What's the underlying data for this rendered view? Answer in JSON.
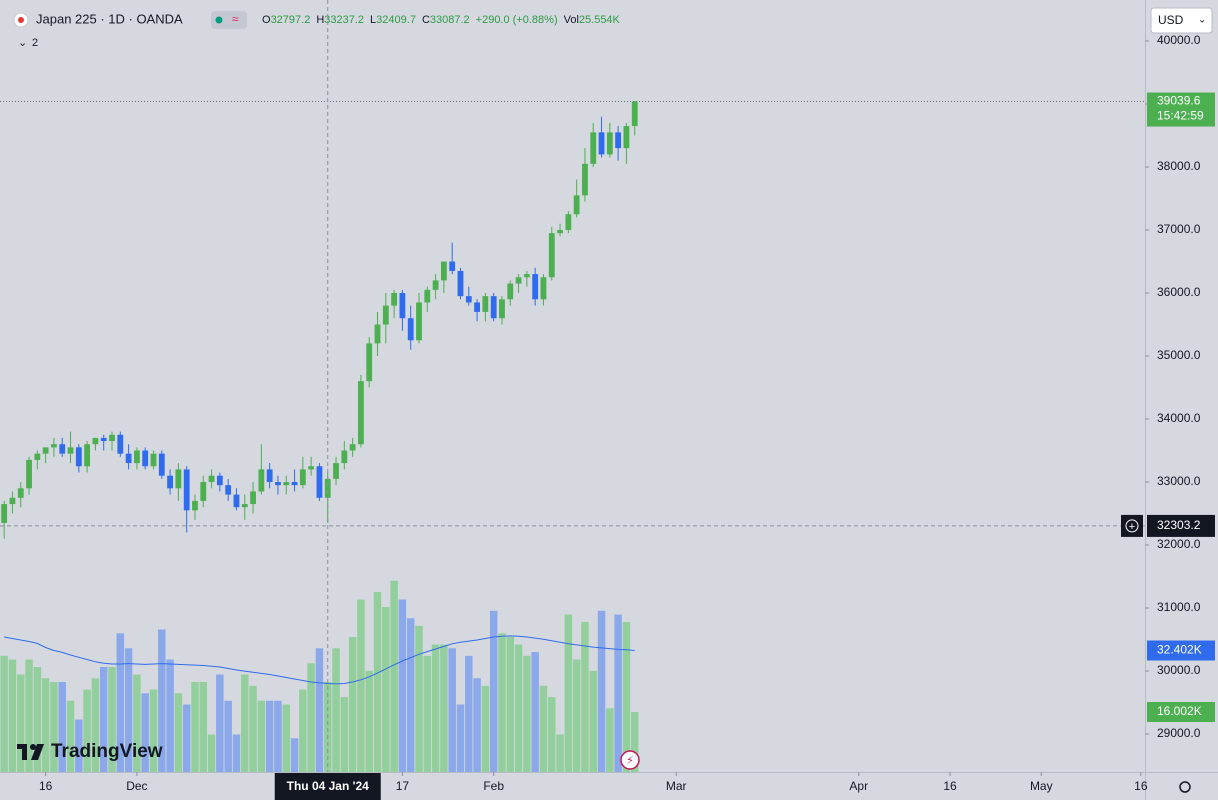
{
  "chart_data": {
    "type": "candlestick",
    "symbol": "Japan 225 · 1D · OANDA",
    "indicator_count": "2",
    "currency": "USD",
    "brand": "TradingView",
    "readout": [
      {
        "label": "O",
        "value": "32797.2"
      },
      {
        "label": "H",
        "value": "33237.2"
      },
      {
        "label": "L",
        "value": "32409.7"
      },
      {
        "label": "C",
        "value": "33087.2"
      },
      {
        "label": "",
        "value": "+290.0 (+0.88%)"
      },
      {
        "label": "Vol",
        "value": "25.554K"
      }
    ],
    "up_color": "#4caf50",
    "down_color": "#2f6bec",
    "volume_up_color": "#93cf9c",
    "volume_down_color": "#8aa8ea",
    "volume_ma_color": "#2f6bec",
    "open": [
      32350,
      32650,
      32750,
      32900,
      33350,
      33450,
      33550,
      33600,
      33450,
      33550,
      33250,
      33600,
      33700,
      33650,
      33750,
      33450,
      33300,
      33500,
      33250,
      33450,
      33100,
      32900,
      33200,
      32550,
      32700,
      33000,
      33100,
      32950,
      32800,
      32600,
      32650,
      32850,
      33200,
      33000,
      32950,
      33000,
      32950,
      33200,
      33250,
      32750,
      33050,
      33300,
      33500,
      33600,
      34600,
      35200,
      35500,
      35800,
      36000,
      35600,
      35250,
      35850,
      36050,
      36200,
      36500,
      36350,
      35950,
      35850,
      35700,
      35950,
      35600,
      35900,
      36150,
      36250,
      36300,
      35900,
      36250,
      36950,
      37000,
      37250,
      37550,
      38050,
      38550,
      38200,
      38550,
      38300,
      38650
    ],
    "high": [
      32700,
      32850,
      33000,
      33400,
      33500,
      33550,
      33700,
      33700,
      33800,
      33600,
      33650,
      33700,
      33750,
      33800,
      33800,
      33600,
      33550,
      33550,
      33500,
      33500,
      33200,
      33300,
      33250,
      32800,
      33100,
      33200,
      33150,
      33050,
      32900,
      32800,
      33000,
      33600,
      33300,
      33100,
      33100,
      33200,
      33400,
      33400,
      33300,
      33150,
      33400,
      33650,
      33700,
      34700,
      35300,
      35700,
      36000,
      36050,
      36050,
      35800,
      36000,
      36100,
      36300,
      36500,
      36800,
      36400,
      36100,
      35900,
      36000,
      36000,
      35950,
      36200,
      36300,
      36350,
      36400,
      36300,
      37050,
      37100,
      37300,
      37800,
      38300,
      38700,
      38800,
      38700,
      38650,
      38700,
      39050
    ],
    "low": [
      32100,
      32500,
      32600,
      32800,
      33200,
      33300,
      33400,
      33400,
      33300,
      33150,
      33150,
      33500,
      33500,
      33500,
      33400,
      33200,
      33200,
      33200,
      33200,
      33050,
      32800,
      32700,
      32200,
      32400,
      32600,
      32900,
      32850,
      32700,
      32550,
      32400,
      32500,
      32800,
      32900,
      32800,
      32800,
      32850,
      32900,
      33100,
      32700,
      32350,
      32950,
      33200,
      33400,
      33550,
      34500,
      35000,
      35200,
      35600,
      35400,
      35100,
      35200,
      35700,
      35900,
      36000,
      36300,
      35900,
      35800,
      35550,
      35550,
      35550,
      35500,
      35800,
      36000,
      36100,
      35800,
      35800,
      36200,
      36900,
      36950,
      37200,
      37450,
      38000,
      38150,
      38150,
      38100,
      38050,
      38500
    ],
    "close": [
      32650,
      32750,
      32900,
      33350,
      33450,
      33550,
      33600,
      33450,
      33550,
      33250,
      33600,
      33700,
      33650,
      33750,
      33450,
      33300,
      33500,
      33250,
      33450,
      33100,
      32900,
      33200,
      32550,
      32700,
      33000,
      33100,
      32950,
      32800,
      32600,
      32650,
      32850,
      33200,
      33000,
      32950,
      33000,
      32950,
      33200,
      33250,
      32750,
      33050,
      33300,
      33500,
      33600,
      34600,
      35200,
      35500,
      35800,
      36000,
      35600,
      35250,
      35850,
      36050,
      36200,
      36500,
      36350,
      35950,
      35850,
      35700,
      35950,
      35600,
      35900,
      36150,
      36250,
      36300,
      35900,
      36250,
      36950,
      37000,
      37250,
      37550,
      38050,
      38550,
      38200,
      38550,
      38300,
      38650,
      39039.6
    ],
    "volume": [
      31,
      30,
      26,
      30,
      28,
      25,
      24,
      24,
      19,
      14,
      22,
      25,
      28,
      28,
      37,
      33,
      26,
      21,
      22,
      38,
      30,
      21,
      18,
      24,
      24,
      10,
      26,
      19,
      10,
      26,
      23,
      19,
      19,
      19,
      18,
      9,
      22,
      29,
      33,
      24,
      33,
      20,
      36,
      46,
      27,
      48,
      44,
      51,
      46,
      41,
      39,
      31,
      34,
      34,
      33,
      18,
      31,
      25,
      23,
      43,
      37,
      36,
      34,
      31,
      32,
      23,
      20,
      10,
      42,
      30,
      40,
      27,
      43,
      17,
      42,
      40,
      16.002
    ],
    "volume_ma": [
      36,
      35.6,
      35.2,
      34.8,
      34.3,
      33.2,
      32.4,
      31.9,
      31.2,
      30.6,
      30.0,
      29.4,
      29.0,
      28.8,
      28.8,
      28.9,
      28.8,
      28.7,
      28.8,
      28.9,
      28.8,
      28.7,
      28.6,
      28.5,
      28.4,
      28.2,
      28.0,
      27.6,
      27.2,
      26.9,
      26.6,
      26.3,
      26.0,
      25.6,
      25.2,
      24.8,
      24.4,
      24.0,
      23.8,
      23.6,
      23.5,
      23.6,
      24.0,
      24.6,
      25.4,
      26.4,
      27.5,
      28.6,
      29.6,
      30.5,
      31.4,
      32.1,
      32.8,
      33.5,
      34.2,
      34.6,
      34.9,
      35.2,
      35.6,
      36.0,
      36.2,
      36.3,
      36.2,
      36.0,
      35.7,
      35.4,
      35.0,
      34.6,
      34.2,
      33.9,
      33.6,
      33.3,
      33.1,
      32.9,
      32.7,
      32.6,
      32.402
    ],
    "last_volume_label": "16.002K",
    "last_volume_ma_label": "32.402K",
    "countdown": "15:42:59",
    "ylim": [
      28397,
      40651
    ],
    "yticks": [
      {
        "value": 29000,
        "label": "29000.0"
      },
      {
        "value": 30000,
        "label": "30000.0"
      },
      {
        "value": 31000,
        "label": "31000.0"
      },
      {
        "value": 32000,
        "label": "32000.0"
      },
      {
        "value": 33000,
        "label": "33000.0"
      },
      {
        "value": 34000,
        "label": "34000.0"
      },
      {
        "value": 35000,
        "label": "35000.0"
      },
      {
        "value": 36000,
        "label": "36000.0"
      },
      {
        "value": 37000,
        "label": "37000.0"
      },
      {
        "value": 38000,
        "label": "38000.0"
      },
      {
        "value": 39000,
        "label": "39000.0"
      },
      {
        "value": 40000,
        "label": "40000.0"
      }
    ],
    "volume_ylim": [
      0,
      205.9
    ],
    "xlim": [
      -0.5,
      137.5
    ],
    "xticks": [
      {
        "value": 5,
        "label": "16"
      },
      {
        "value": 16,
        "label": "Dec"
      },
      {
        "value": 48,
        "label": "17"
      },
      {
        "value": 59,
        "label": "Feb"
      },
      {
        "value": 81,
        "label": "Mar"
      },
      {
        "value": 103,
        "label": "Apr"
      },
      {
        "value": 114,
        "label": "16"
      },
      {
        "value": 125,
        "label": "May"
      },
      {
        "value": 137,
        "label": "16"
      }
    ],
    "crosshair": {
      "x": 39,
      "label": "Thu 04 Jan '24",
      "price": 32303.2
    }
  }
}
